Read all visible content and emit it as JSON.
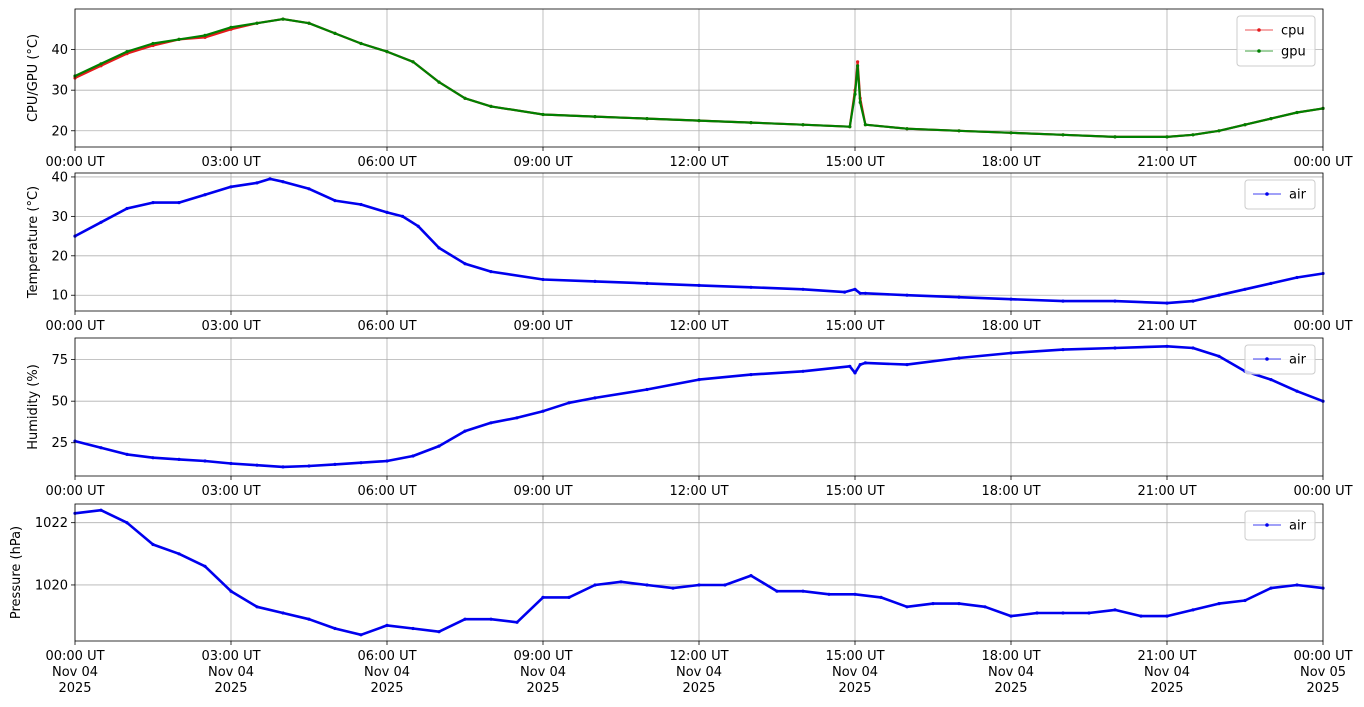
{
  "chart_data": [
    {
      "type": "line",
      "ylabel": "CPU/GPU (°C)",
      "ylim": [
        16,
        50
      ],
      "yticks": [
        20,
        30,
        40
      ],
      "xlim_hours": [
        0,
        24
      ],
      "grid": true,
      "legend_position": "top-right",
      "series": [
        {
          "name": "cpu",
          "color": "#e41a1c",
          "x_hours": [
            0,
            0.5,
            1,
            1.5,
            2,
            2.5,
            3,
            3.5,
            4,
            4.5,
            5,
            5.5,
            6,
            6.5,
            7,
            7.5,
            8,
            9,
            10,
            11,
            12,
            13,
            14,
            14.9,
            15.0,
            15.05,
            15.1,
            15.2,
            16,
            17,
            18,
            19,
            20,
            21,
            21.5,
            22,
            22.5,
            23,
            23.5,
            24
          ],
          "values": [
            33,
            36,
            39,
            41,
            42.5,
            43,
            45,
            46.5,
            47.5,
            46.5,
            44,
            41.5,
            39.5,
            37,
            32,
            28,
            26,
            24,
            23.5,
            23,
            22.5,
            22,
            21.5,
            21,
            30,
            37,
            28,
            21.5,
            20.5,
            20,
            19.5,
            19,
            18.5,
            18.5,
            19,
            20,
            21.5,
            23,
            24.5,
            25.5
          ]
        },
        {
          "name": "gpu",
          "color": "#008000",
          "x_hours": [
            0,
            0.5,
            1,
            1.5,
            2,
            2.5,
            3,
            3.5,
            4,
            4.5,
            5,
            5.5,
            6,
            6.5,
            7,
            7.5,
            8,
            9,
            10,
            11,
            12,
            13,
            14,
            14.9,
            15.0,
            15.05,
            15.1,
            15.2,
            16,
            17,
            18,
            19,
            20,
            21,
            21.5,
            22,
            22.5,
            23,
            23.5,
            24
          ],
          "values": [
            33.5,
            36.5,
            39.5,
            41.5,
            42.5,
            43.5,
            45.5,
            46.5,
            47.5,
            46.5,
            44,
            41.5,
            39.5,
            37,
            32,
            28,
            26,
            24,
            23.5,
            23,
            22.5,
            22,
            21.5,
            21,
            29,
            36,
            27,
            21.5,
            20.5,
            20,
            19.5,
            19,
            18.5,
            18.5,
            19,
            20,
            21.5,
            23,
            24.5,
            25.5
          ]
        }
      ]
    },
    {
      "type": "line",
      "ylabel": "Temperature (°C)",
      "ylim": [
        6,
        41
      ],
      "yticks": [
        10,
        20,
        30,
        40
      ],
      "xlim_hours": [
        0,
        24
      ],
      "grid": true,
      "legend_position": "top-right",
      "series": [
        {
          "name": "air",
          "color": "#0000ee",
          "x_hours": [
            0,
            0.5,
            1,
            1.5,
            2,
            2.5,
            3,
            3.5,
            3.75,
            4,
            4.5,
            5,
            5.5,
            6,
            6.3,
            6.6,
            7,
            7.5,
            8,
            9,
            10,
            11,
            12,
            13,
            14,
            14.8,
            15.0,
            15.1,
            15.2,
            16,
            17,
            18,
            19,
            20,
            21,
            21.5,
            22,
            22.5,
            23,
            23.5,
            24
          ],
          "values": [
            25,
            28.5,
            32,
            33.5,
            33.5,
            35.5,
            37.5,
            38.5,
            39.5,
            38.8,
            37,
            34,
            33,
            31,
            30,
            27.5,
            22,
            18,
            16,
            14,
            13.5,
            13,
            12.5,
            12,
            11.5,
            10.8,
            11.5,
            10.5,
            10.5,
            10,
            9.5,
            9,
            8.5,
            8.5,
            8,
            8.5,
            10,
            11.5,
            13,
            14.5,
            15.5
          ]
        }
      ]
    },
    {
      "type": "line",
      "ylabel": "Humidity (%)",
      "ylim": [
        5,
        88
      ],
      "yticks": [
        25,
        50,
        75
      ],
      "xlim_hours": [
        0,
        24
      ],
      "grid": true,
      "legend_position": "top-right",
      "series": [
        {
          "name": "air",
          "color": "#0000ee",
          "x_hours": [
            0,
            0.5,
            1,
            1.5,
            2,
            2.5,
            3,
            3.5,
            4,
            4.5,
            5,
            5.5,
            6,
            6.5,
            7,
            7.5,
            8,
            8.5,
            9,
            9.5,
            10,
            11,
            12,
            13,
            14,
            14.9,
            15.0,
            15.1,
            15.2,
            16,
            17,
            18,
            19,
            20,
            21,
            21.5,
            22,
            22.5,
            23,
            23.5,
            24
          ],
          "values": [
            26,
            22,
            18,
            16,
            15,
            14,
            12.5,
            11.5,
            10.5,
            11,
            12,
            13,
            14,
            17,
            23,
            32,
            37,
            40,
            44,
            49,
            52,
            57,
            63,
            66,
            68,
            71,
            67,
            72,
            73,
            72,
            76,
            79,
            81,
            82,
            83,
            82,
            77,
            68,
            63,
            56,
            50
          ]
        }
      ]
    },
    {
      "type": "line",
      "ylabel": "Pressure (hPa)",
      "ylim": [
        1018.2,
        1022.6
      ],
      "yticks": [
        1020,
        1022
      ],
      "xlim_hours": [
        0,
        24
      ],
      "grid": true,
      "legend_position": "top-right",
      "series": [
        {
          "name": "air",
          "color": "#0000ee",
          "x_hours": [
            0,
            0.5,
            1,
            1.5,
            2,
            2.5,
            3,
            3.5,
            4,
            4.5,
            5,
            5.5,
            6,
            6.5,
            7,
            7.5,
            8,
            8.5,
            9,
            9.5,
            10,
            10.5,
            11,
            11.5,
            12,
            12.5,
            13,
            13.5,
            14,
            14.5,
            15,
            15.5,
            16,
            16.5,
            17,
            17.5,
            18,
            18.5,
            19,
            19.5,
            20,
            20.5,
            21,
            21.5,
            22,
            22.5,
            23,
            23.5,
            24
          ],
          "values": [
            1022.3,
            1022.4,
            1022.0,
            1021.3,
            1021.0,
            1020.6,
            1019.8,
            1019.3,
            1019.1,
            1018.9,
            1018.6,
            1018.4,
            1018.7,
            1018.6,
            1018.5,
            1018.9,
            1018.9,
            1018.8,
            1019.6,
            1019.6,
            1020.0,
            1020.1,
            1020.0,
            1019.9,
            1020.0,
            1020.0,
            1020.3,
            1019.8,
            1019.8,
            1019.7,
            1019.7,
            1019.6,
            1019.3,
            1019.4,
            1019.4,
            1019.3,
            1019.0,
            1019.1,
            1019.1,
            1019.1,
            1019.2,
            1019.0,
            1019.0,
            1019.2,
            1019.4,
            1019.5,
            1019.9,
            1020.0,
            1019.9
          ]
        }
      ]
    }
  ],
  "x_tick_labels": [
    "00:00 UT",
    "03:00 UT",
    "06:00 UT",
    "09:00 UT",
    "12:00 UT",
    "15:00 UT",
    "18:00 UT",
    "21:00 UT",
    "00:00 UT"
  ],
  "x_tick_dates": [
    "Nov 04",
    "Nov 04",
    "Nov 04",
    "Nov 04",
    "Nov 04",
    "Nov 04",
    "Nov 04",
    "Nov 04",
    "Nov 05"
  ],
  "x_tick_years": [
    "2025",
    "2025",
    "2025",
    "2025",
    "2025",
    "2025",
    "2025",
    "2025",
    "2025"
  ]
}
